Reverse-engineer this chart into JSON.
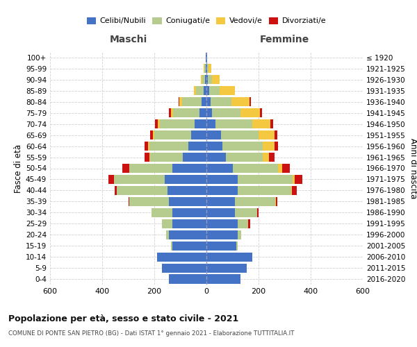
{
  "age_groups_bottom_to_top": [
    "0-4",
    "5-9",
    "10-14",
    "15-19",
    "20-24",
    "25-29",
    "30-34",
    "35-39",
    "40-44",
    "45-49",
    "50-54",
    "55-59",
    "60-64",
    "65-69",
    "70-74",
    "75-79",
    "80-84",
    "85-89",
    "90-94",
    "95-99",
    "100+"
  ],
  "birth_years_bottom_to_top": [
    "2016-2020",
    "2011-2015",
    "2006-2010",
    "2001-2005",
    "1996-2000",
    "1991-1995",
    "1986-1990",
    "1981-1985",
    "1976-1980",
    "1971-1975",
    "1966-1970",
    "1961-1965",
    "1956-1960",
    "1951-1955",
    "1946-1950",
    "1941-1945",
    "1936-1940",
    "1931-1935",
    "1926-1930",
    "1921-1925",
    "≤ 1920"
  ],
  "maschi": {
    "celibi": [
      145,
      170,
      190,
      130,
      145,
      130,
      130,
      145,
      150,
      160,
      130,
      90,
      70,
      60,
      45,
      28,
      18,
      10,
      5,
      4,
      2
    ],
    "coniugati": [
      0,
      0,
      0,
      5,
      10,
      40,
      80,
      150,
      195,
      195,
      165,
      125,
      150,
      140,
      135,
      100,
      75,
      30,
      12,
      4,
      0
    ],
    "vedovi": [
      0,
      0,
      0,
      0,
      0,
      0,
      0,
      0,
      0,
      1,
      2,
      3,
      5,
      5,
      8,
      8,
      10,
      8,
      5,
      2,
      0
    ],
    "divorziati": [
      0,
      0,
      0,
      0,
      0,
      0,
      2,
      5,
      8,
      20,
      25,
      20,
      12,
      10,
      10,
      8,
      5,
      0,
      0,
      0,
      0
    ]
  },
  "femmine": {
    "nubili": [
      130,
      155,
      175,
      115,
      120,
      120,
      110,
      110,
      120,
      120,
      100,
      75,
      60,
      55,
      35,
      20,
      15,
      10,
      5,
      3,
      2
    ],
    "coniugate": [
      0,
      0,
      0,
      4,
      12,
      40,
      85,
      155,
      205,
      210,
      175,
      140,
      155,
      145,
      140,
      110,
      80,
      40,
      15,
      5,
      0
    ],
    "vedove": [
      0,
      0,
      0,
      0,
      0,
      0,
      0,
      2,
      3,
      8,
      15,
      25,
      45,
      60,
      70,
      75,
      70,
      60,
      30,
      10,
      0
    ],
    "divorziate": [
      0,
      0,
      0,
      0,
      2,
      8,
      5,
      5,
      18,
      30,
      30,
      20,
      15,
      12,
      12,
      8,
      5,
      0,
      0,
      0,
      0
    ]
  },
  "colors": {
    "celibi": "#4472C4",
    "coniugati": "#B5CC8E",
    "vedovi": "#F5C842",
    "divorziati": "#CC1111"
  },
  "xlim": 600,
  "title": "Popolazione per età, sesso e stato civile - 2021",
  "subtitle": "COMUNE DI PONTE SAN PIETRO (BG) - Dati ISTAT 1° gennaio 2021 - Elaborazione TUTTITALIA.IT",
  "ylabel_left": "Fasce di età",
  "ylabel_right": "Anni di nascita",
  "legend_labels": [
    "Celibi/Nubili",
    "Coniugati/e",
    "Vedovi/e",
    "Divorziati/e"
  ],
  "bg_color": "#ffffff",
  "grid_color": "#cccccc",
  "maschi_label": "Maschi",
  "femmine_label": "Femmine"
}
